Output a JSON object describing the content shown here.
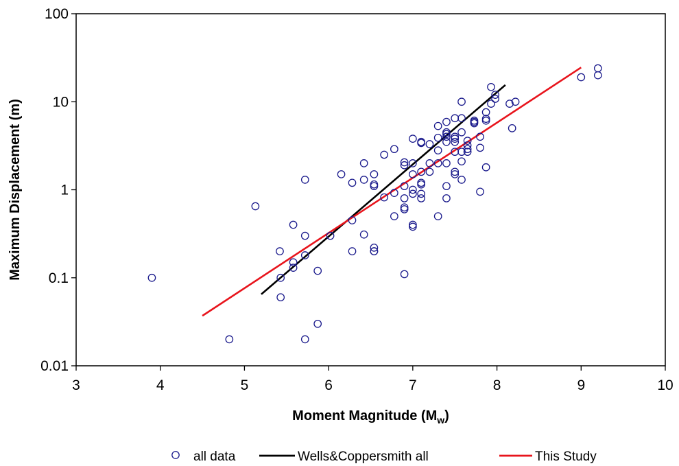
{
  "chart_data": {
    "type": "scatter",
    "title": "",
    "xlabel": "Moment Magnitude (M",
    "xlabel_sub": "w",
    "xlabel_close": ")",
    "ylabel": "Maximum Displacement (m)",
    "xlim": [
      3,
      10
    ],
    "ylim": [
      0.01,
      100
    ],
    "yscale": "log",
    "grid": false,
    "legend_position": "bottom",
    "x_ticks": [
      "3",
      "4",
      "5",
      "6",
      "7",
      "8",
      "9",
      "10"
    ],
    "y_ticks": [
      "0.01",
      "0.1",
      "1",
      "10",
      "100"
    ],
    "series": [
      {
        "name": "all data",
        "kind": "scatter",
        "marker": "open-circle",
        "color": "#1a1a8c",
        "points": [
          [
            3.9,
            0.1
          ],
          [
            4.82,
            0.02
          ],
          [
            5.13,
            0.65
          ],
          [
            5.42,
            0.2
          ],
          [
            5.43,
            0.1
          ],
          [
            5.43,
            0.06
          ],
          [
            5.58,
            0.4
          ],
          [
            5.58,
            0.15
          ],
          [
            5.58,
            0.13
          ],
          [
            5.72,
            1.3
          ],
          [
            5.72,
            0.3
          ],
          [
            5.72,
            0.18
          ],
          [
            5.72,
            0.02
          ],
          [
            5.87,
            0.12
          ],
          [
            5.87,
            0.03
          ],
          [
            6.02,
            0.3
          ],
          [
            6.15,
            1.5
          ],
          [
            6.28,
            1.2
          ],
          [
            6.28,
            0.45
          ],
          [
            6.28,
            0.2
          ],
          [
            6.42,
            2.0
          ],
          [
            6.42,
            1.3
          ],
          [
            6.42,
            0.31
          ],
          [
            6.54,
            1.5
          ],
          [
            6.54,
            1.15
          ],
          [
            6.54,
            1.1
          ],
          [
            6.54,
            0.22
          ],
          [
            6.54,
            0.2
          ],
          [
            6.54,
            0.2
          ],
          [
            6.66,
            2.5
          ],
          [
            6.66,
            0.82
          ],
          [
            6.78,
            2.9
          ],
          [
            6.78,
            0.92
          ],
          [
            6.78,
            0.5
          ],
          [
            6.9,
            2.05
          ],
          [
            6.9,
            1.9
          ],
          [
            6.9,
            1.1
          ],
          [
            6.9,
            0.8
          ],
          [
            6.9,
            0.63
          ],
          [
            6.9,
            0.6
          ],
          [
            6.9,
            0.11
          ],
          [
            7.0,
            3.8
          ],
          [
            7.0,
            2.0
          ],
          [
            7.0,
            1.5
          ],
          [
            7.0,
            1.0
          ],
          [
            7.0,
            0.9
          ],
          [
            7.0,
            0.4
          ],
          [
            7.0,
            0.38
          ],
          [
            7.1,
            3.5
          ],
          [
            7.1,
            3.4
          ],
          [
            7.1,
            1.6
          ],
          [
            7.1,
            1.2
          ],
          [
            7.1,
            1.15
          ],
          [
            7.1,
            0.9
          ],
          [
            7.1,
            0.8
          ],
          [
            7.2,
            3.3
          ],
          [
            7.2,
            2.0
          ],
          [
            7.2,
            1.6
          ],
          [
            7.3,
            5.3
          ],
          [
            7.3,
            3.9
          ],
          [
            7.3,
            2.8
          ],
          [
            7.3,
            2.0
          ],
          [
            7.3,
            0.5
          ],
          [
            7.4,
            5.9
          ],
          [
            7.4,
            4.5
          ],
          [
            7.4,
            4.3
          ],
          [
            7.4,
            4.0
          ],
          [
            7.4,
            3.5
          ],
          [
            7.4,
            2.0
          ],
          [
            7.4,
            1.1
          ],
          [
            7.4,
            0.8
          ],
          [
            7.5,
            6.5
          ],
          [
            7.5,
            4.0
          ],
          [
            7.5,
            3.8
          ],
          [
            7.5,
            3.5
          ],
          [
            7.5,
            2.7
          ],
          [
            7.5,
            1.6
          ],
          [
            7.5,
            1.5
          ],
          [
            7.58,
            10.0
          ],
          [
            7.58,
            6.5
          ],
          [
            7.58,
            4.5
          ],
          [
            7.58,
            2.7
          ],
          [
            7.58,
            2.1
          ],
          [
            7.58,
            1.3
          ],
          [
            7.65,
            3.6
          ],
          [
            7.65,
            3.2
          ],
          [
            7.65,
            2.9
          ],
          [
            7.65,
            2.7
          ],
          [
            7.73,
            6.1
          ],
          [
            7.73,
            5.9
          ],
          [
            7.73,
            5.7
          ],
          [
            7.8,
            4.0
          ],
          [
            7.8,
            3.0
          ],
          [
            7.8,
            0.95
          ],
          [
            7.87,
            7.6
          ],
          [
            7.87,
            6.4
          ],
          [
            7.87,
            6.1
          ],
          [
            7.87,
            1.8
          ],
          [
            7.93,
            14.7
          ],
          [
            7.93,
            9.5
          ],
          [
            7.98,
            12.0
          ],
          [
            7.98,
            10.8
          ],
          [
            8.15,
            9.5
          ],
          [
            8.18,
            5.0
          ],
          [
            8.22,
            10.0
          ],
          [
            9.0,
            19.0
          ],
          [
            9.2,
            24.0
          ],
          [
            9.2,
            20.0
          ]
        ]
      },
      {
        "name": "Wells&Coppersmith all",
        "kind": "line",
        "color": "#000000",
        "x": [
          5.2,
          8.1
        ],
        "y": [
          0.065,
          15.5
        ]
      },
      {
        "name": "This Study",
        "kind": "line",
        "color": "#e8141c",
        "x": [
          4.5,
          9.0
        ],
        "y": [
          0.037,
          24.5
        ]
      }
    ]
  }
}
